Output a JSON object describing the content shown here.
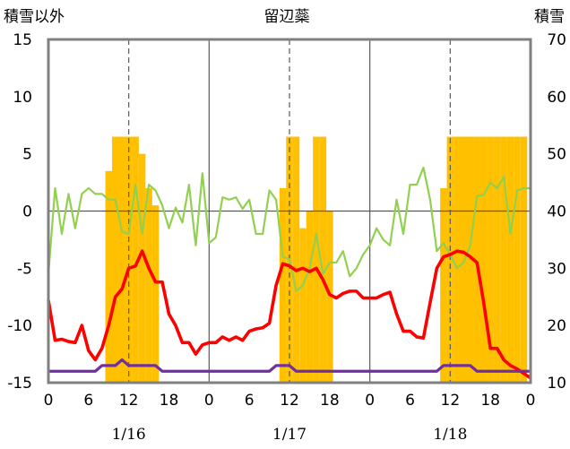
{
  "chart_data": {
    "type": "bar+line",
    "title": "留辺蘂",
    "left_axis_label": "積雪以外",
    "right_axis_label": "積雪",
    "left_ylim": [
      -15,
      15
    ],
    "left_ticks": [
      "15",
      "10",
      "5",
      "0",
      "-5",
      "-10",
      "-15"
    ],
    "right_ylim": [
      10,
      70
    ],
    "right_ticks": [
      "70",
      "60",
      "50",
      "40",
      "30",
      "20",
      "10"
    ],
    "x_hour_ticks": [
      "0",
      "6",
      "12",
      "18",
      "0",
      "6",
      "12",
      "18",
      "0",
      "6",
      "12",
      "18",
      "0"
    ],
    "date_labels": [
      "1/16",
      "1/17",
      "1/18"
    ],
    "hours_total": 72,
    "snow_bars": [
      0,
      0,
      0,
      0,
      0,
      0,
      0,
      0,
      0,
      47,
      53,
      53,
      53,
      53,
      50,
      44,
      41,
      0,
      0,
      0,
      0,
      0,
      0,
      0,
      0,
      0,
      0,
      0,
      0,
      0,
      0,
      0,
      0,
      0,
      0,
      44,
      53,
      53,
      37,
      40,
      53,
      53,
      40,
      0,
      0,
      0,
      0,
      0,
      0,
      0,
      0,
      0,
      0,
      0,
      0,
      0,
      0,
      0,
      0,
      44,
      53,
      53,
      53,
      53,
      53,
      53,
      53,
      53,
      53,
      53,
      53,
      53,
      0
    ],
    "series": [
      {
        "values": [
          -5.5,
          2.0,
          -2.0,
          1.5,
          -1.5,
          1.5,
          2.0,
          1.5,
          1.5,
          1.0,
          1.0,
          -1.8,
          -2.0,
          2.3,
          -2.0,
          2.3,
          1.8,
          0.5,
          -1.5,
          0.3,
          -1.0,
          2.3,
          -3.0,
          3.3,
          -2.8,
          -2.3,
          1.2,
          1.0,
          1.2,
          0.2,
          1.0,
          -2.0,
          -2.0,
          1.8,
          1.0,
          -4.0,
          -4.2,
          -7.0,
          -6.5,
          -5.0,
          -2.0,
          -5.5,
          -4.5,
          -4.5,
          -3.5,
          -5.7,
          -5.0,
          -3.8,
          -3.0,
          -1.5,
          -2.5,
          -3.0,
          1.0,
          -2.0,
          2.3,
          2.3,
          3.8,
          1.0,
          -3.5,
          -2.8,
          -3.8,
          -5.0,
          -4.5,
          -3.0,
          1.3,
          1.4,
          2.5,
          2.0,
          3.0,
          -2.0,
          1.8,
          2.0,
          2.0
        ]
      },
      {
        "values": [
          -7.8,
          -11.3,
          -11.2,
          -11.4,
          -11.5,
          -10.0,
          -12.2,
          -13.0,
          -12.0,
          -10.0,
          -7.5,
          -6.8,
          -5.0,
          -4.8,
          -3.5,
          -5.0,
          -6.2,
          -6.2,
          -9.0,
          -10.0,
          -11.5,
          -11.5,
          -12.5,
          -11.7,
          -11.5,
          -11.5,
          -11.0,
          -11.3,
          -11.0,
          -11.3,
          -10.5,
          -10.3,
          -10.2,
          -9.8,
          -6.5,
          -4.6,
          -4.8,
          -5.2,
          -5.0,
          -5.3,
          -5.0,
          -6.0,
          -7.3,
          -7.6,
          -7.2,
          -7.0,
          -7.0,
          -7.6,
          -7.6,
          -7.6,
          -7.3,
          -7.1,
          -9.0,
          -10.5,
          -10.5,
          -11.0,
          -11.1,
          -8.0,
          -5.0,
          -4.0,
          -3.8,
          -3.5,
          -3.6,
          -4.0,
          -4.5,
          -8.0,
          -12.0,
          -12.0,
          -13.0,
          -13.5,
          -13.8,
          -14.2,
          -14.6
        ]
      },
      {
        "values": [
          -14.0,
          -14.0,
          -14.0,
          -14.0,
          -14.0,
          -14.0,
          -14.0,
          -14.0,
          -13.5,
          -13.5,
          -13.5,
          -13.0,
          -13.5,
          -13.5,
          -13.5,
          -13.5,
          -13.5,
          -14.0,
          -14.0,
          -14.0,
          -14.0,
          -14.0,
          -14.0,
          -14.0,
          -14.0,
          -14.0,
          -14.0,
          -14.0,
          -14.0,
          -14.0,
          -14.0,
          -14.0,
          -14.0,
          -14.0,
          -13.5,
          -13.5,
          -13.5,
          -14.0,
          -14.0,
          -14.0,
          -14.0,
          -14.0,
          -14.0,
          -14.0,
          -14.0,
          -14.0,
          -14.0,
          -14.0,
          -14.0,
          -14.0,
          -14.0,
          -14.0,
          -14.0,
          -14.0,
          -14.0,
          -14.0,
          -14.0,
          -14.0,
          -14.0,
          -13.5,
          -13.5,
          -13.5,
          -13.5,
          -13.5,
          -14.0,
          -14.0,
          -14.0,
          -14.0,
          -14.0,
          -14.0,
          -14.0,
          -14.0,
          -14.0
        ]
      }
    ],
    "colors": {
      "snow": "#FFC000",
      "green": "#92D050",
      "red": "#FF0000",
      "purple": "#7030A0",
      "frame": "#808080",
      "grid": "#595959"
    },
    "grid": true,
    "legend": "none"
  }
}
